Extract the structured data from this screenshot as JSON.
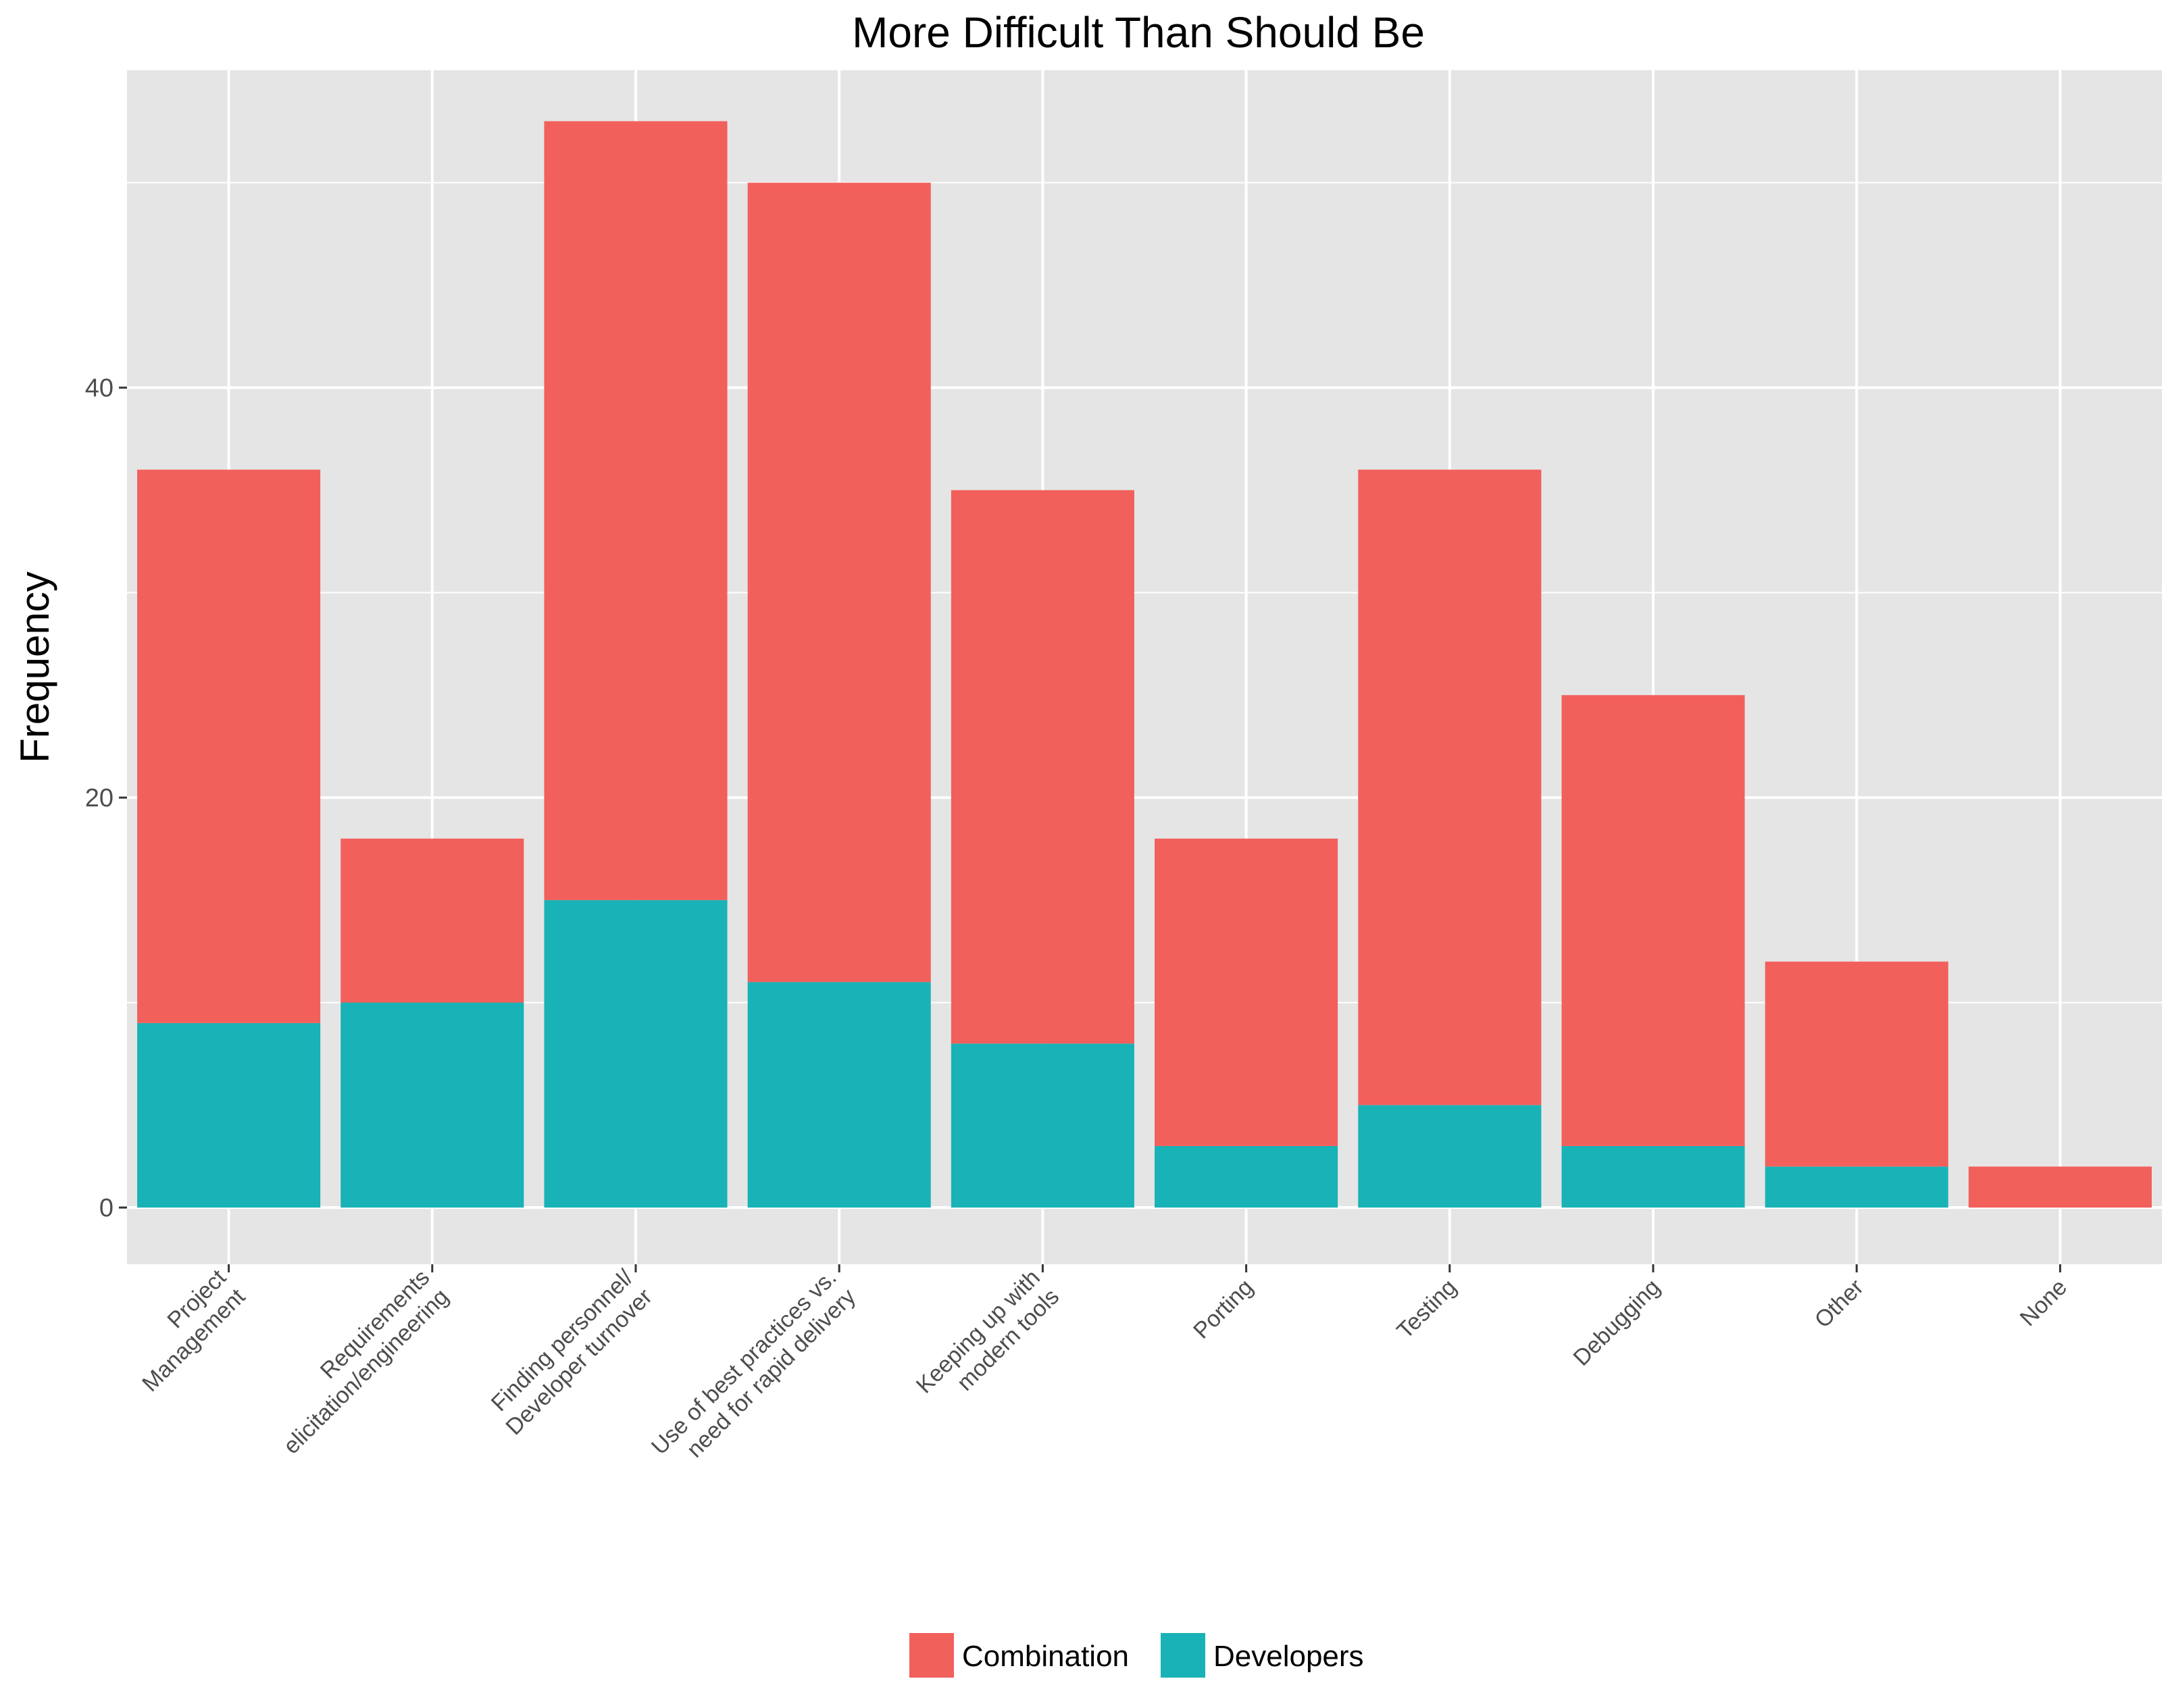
{
  "chart_data": {
    "type": "bar",
    "stacked": true,
    "title": "More Difficult Than Should Be",
    "xlabel": "",
    "ylabel": "Frequency",
    "ylim": [
      -2.5,
      56
    ],
    "yticks": [
      0,
      20,
      40
    ],
    "grid": true,
    "legend_position": "bottom",
    "categories": [
      [
        "Project",
        "Management"
      ],
      [
        "Requirements",
        "elicitation/engineering"
      ],
      [
        "Finding personnel/",
        "Developer turnover"
      ],
      [
        "Use of best practices vs.",
        "need for rapid delivery"
      ],
      [
        "Keeping up with",
        "modern tools"
      ],
      [
        "Porting"
      ],
      [
        "Testing"
      ],
      [
        "Debugging"
      ],
      [
        "Other"
      ],
      [
        "None"
      ]
    ],
    "series": [
      {
        "name": "Developers",
        "color": "#19b2b6",
        "values": [
          9,
          10,
          15,
          11,
          8,
          3,
          5,
          3,
          2,
          0
        ]
      },
      {
        "name": "Combination",
        "color": "#f2605c",
        "values": [
          27,
          8,
          38,
          39,
          27,
          15,
          31,
          22,
          10,
          2
        ]
      }
    ],
    "legend_order": [
      "Combination",
      "Developers"
    ]
  }
}
